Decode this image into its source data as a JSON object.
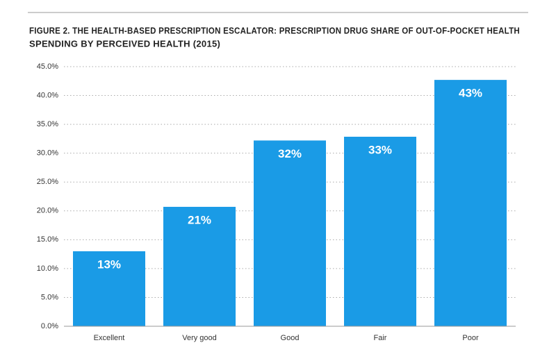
{
  "chart_data": {
    "type": "bar",
    "title": [
      "FIGURE 2. THE HEALTH-BASED PRESCRIPTION ESCALATOR: PRESCRIPTION DRUG SHARE OF OUT-OF-POCKET HEALTH",
      "SPENDING BY PERCEIVED HEALTH (2015)"
    ],
    "categories": [
      "Excellent",
      "Very good",
      "Good",
      "Fair",
      "Poor"
    ],
    "values": [
      13.0,
      20.7,
      32.2,
      32.85,
      42.7
    ],
    "value_labels": [
      "13%",
      "21%",
      "32%",
      "33%",
      "43%"
    ],
    "color": "#1a9be6",
    "ylim": [
      0,
      45
    ],
    "yticks": [
      {
        "value": 0,
        "label": "0.0%"
      },
      {
        "value": 5,
        "label": "5.0%"
      },
      {
        "value": 10,
        "label": "10.0%"
      },
      {
        "value": 15,
        "label": "15.0%"
      },
      {
        "value": 20,
        "label": "20.0%"
      },
      {
        "value": 25,
        "label": "25.0%"
      },
      {
        "value": 30,
        "label": "30.0%"
      },
      {
        "value": 35,
        "label": "35.0%"
      },
      {
        "value": 40,
        "label": "40.0%"
      },
      {
        "value": 45,
        "label": "45.0%"
      }
    ],
    "grid": true
  }
}
